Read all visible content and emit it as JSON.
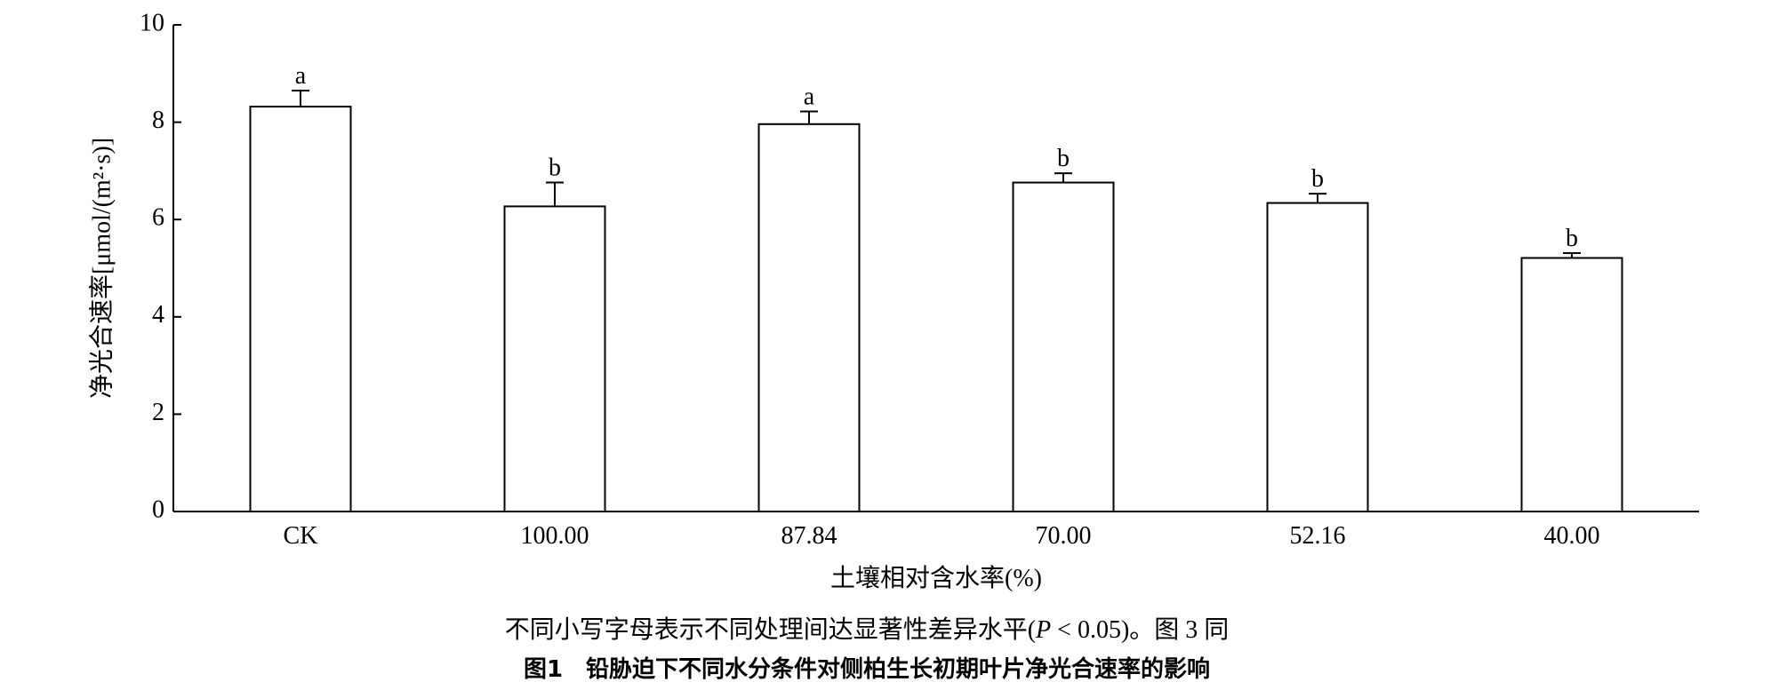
{
  "chart_data": {
    "type": "bar",
    "ylabel": "净光合速率[μmol/(m²·s)]",
    "xlabel": "土壤相对含水率(%)",
    "categories": [
      "CK",
      "100.00",
      "87.84",
      "70.00",
      "52.16",
      "40.00"
    ],
    "values": [
      8.32,
      6.27,
      7.96,
      6.76,
      6.34,
      5.21
    ],
    "errors": [
      0.33,
      0.49,
      0.26,
      0.19,
      0.19,
      0.1
    ],
    "significance_labels": [
      "a",
      "b",
      "a",
      "b",
      "b",
      "b"
    ],
    "color": "#ffffff",
    "ylim": [
      0,
      10
    ],
    "yticks": [
      0,
      2,
      4,
      6,
      8,
      10
    ],
    "note": {
      "before": "不同小写字母表示不同处理间达显著性差异水平(",
      "italic": "P",
      "after": " < 0.05)。图 3 同"
    },
    "caption": "图1　铅胁迫下不同水分条件对侧柏生长初期叶片净光合速率的影响"
  }
}
